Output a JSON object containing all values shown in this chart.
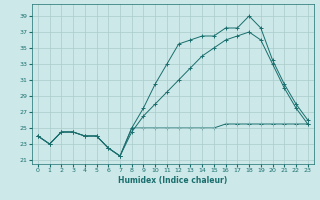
{
  "xlabel": "Humidex (Indice chaleur)",
  "background_color": "#cce8e8",
  "grid_color": "#aacccc",
  "line_color": "#1a6e6e",
  "xlim": [
    -0.5,
    23.5
  ],
  "ylim": [
    20.5,
    40.5
  ],
  "yticks": [
    21,
    23,
    25,
    27,
    29,
    31,
    33,
    35,
    37,
    39
  ],
  "xticks": [
    0,
    1,
    2,
    3,
    4,
    5,
    6,
    7,
    8,
    9,
    10,
    11,
    12,
    13,
    14,
    15,
    16,
    17,
    18,
    19,
    20,
    21,
    22,
    23
  ],
  "line1_x": [
    0,
    1,
    2,
    3,
    4,
    5,
    6,
    7,
    8,
    9,
    10,
    11,
    12,
    13,
    14,
    15,
    16,
    17,
    18,
    19,
    20,
    21,
    22,
    23
  ],
  "line1_y": [
    24.0,
    23.0,
    24.5,
    24.5,
    24.0,
    24.0,
    22.5,
    21.5,
    25.0,
    27.5,
    30.5,
    33.0,
    35.5,
    36.0,
    36.5,
    36.5,
    37.5,
    37.5,
    39.0,
    37.5,
    33.5,
    30.5,
    28.0,
    26.0
  ],
  "line2_x": [
    0,
    1,
    2,
    3,
    4,
    5,
    6,
    7,
    8,
    9,
    10,
    11,
    12,
    13,
    14,
    15,
    16,
    17,
    18,
    19,
    20,
    21,
    22,
    23
  ],
  "line2_y": [
    24.0,
    23.0,
    24.5,
    24.5,
    24.0,
    24.0,
    22.5,
    21.5,
    24.5,
    26.5,
    28.0,
    29.5,
    31.0,
    32.5,
    34.0,
    35.0,
    36.0,
    36.5,
    37.0,
    36.0,
    33.0,
    30.0,
    27.5,
    25.5
  ],
  "line3_x": [
    0,
    1,
    2,
    3,
    4,
    5,
    6,
    7,
    8,
    9,
    10,
    11,
    12,
    13,
    14,
    15,
    16,
    17,
    18,
    19,
    20,
    21,
    22,
    23
  ],
  "line3_y": [
    24.0,
    23.0,
    24.5,
    24.5,
    24.0,
    24.0,
    22.5,
    21.5,
    25.0,
    25.0,
    25.0,
    25.0,
    25.0,
    25.0,
    25.0,
    25.0,
    25.5,
    25.5,
    25.5,
    25.5,
    25.5,
    25.5,
    25.5,
    25.5
  ],
  "xlabel_fontsize": 5.5,
  "tick_fontsize": 4.5,
  "linewidth": 0.7,
  "markersize": 2.5
}
